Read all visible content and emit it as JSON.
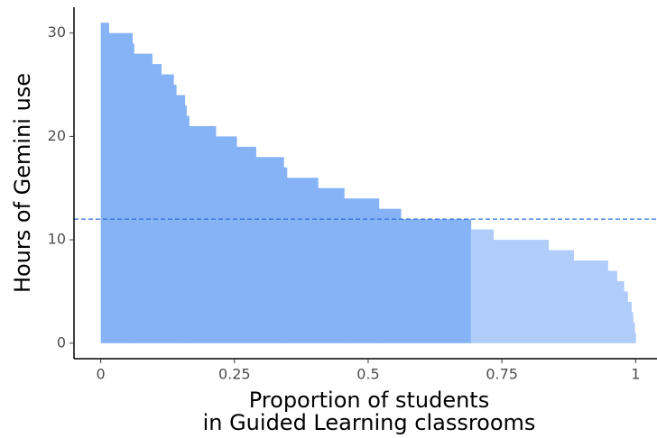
{
  "chart_data": {
    "type": "histogram",
    "x_label": [
      "Proportion of students",
      "in Guided Learning classrooms"
    ],
    "y_label": "Hours of Gemini use",
    "bins": [
      0,
      0.015,
      0.059,
      0.062,
      0.096,
      0.113,
      0.136,
      0.141,
      0.157,
      0.16,
      0.165,
      0.215,
      0.254,
      0.29,
      0.342,
      0.348,
      0.406,
      0.455,
      0.52,
      0.561,
      0.692,
      0.734,
      0.837,
      0.884,
      0.948,
      0.965,
      0.978,
      0.985,
      0.992,
      0.995,
      0.998,
      1.0
    ],
    "values": [
      31,
      30,
      29,
      28,
      27,
      26,
      25,
      24,
      23,
      22,
      21,
      20,
      19,
      18,
      17,
      16,
      15,
      14,
      13,
      12,
      11,
      10,
      9,
      8,
      7,
      6,
      5,
      4,
      3,
      2,
      1
    ],
    "color": "#b0cdf9",
    "highlight_color": "#86b2f6",
    "hline": {
      "value": 12,
      "color": "#2f6fd6",
      "dashed": true
    },
    "xlim": [
      -0.05,
      1.04
    ],
    "ylim": [
      -1.5,
      32.5
    ],
    "xticks": [
      0,
      0.25,
      0.5,
      0.75,
      1
    ],
    "yticks": [
      0,
      10,
      20,
      30
    ],
    "grid": false
  }
}
